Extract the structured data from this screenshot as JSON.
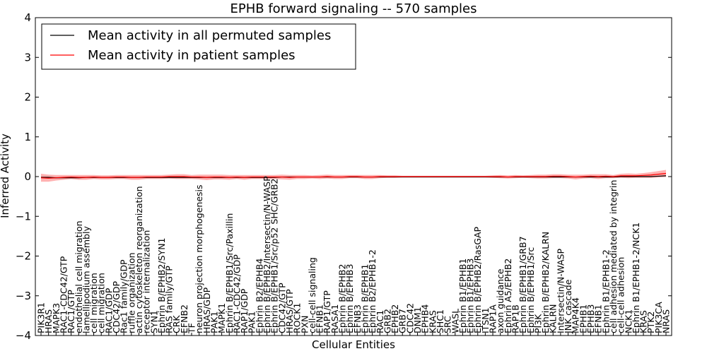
{
  "chart_data": {
    "type": "line",
    "title": "EPHB forward signaling -- 570 samples",
    "xlabel": "Cellular Entities",
    "ylabel": "Inferred Activity",
    "ylim": [
      -4,
      4
    ],
    "yticks": [
      -4,
      -3,
      -2,
      -1,
      0,
      1,
      2,
      3,
      4
    ],
    "ytick_labels": [
      "−4",
      "−3",
      "−2",
      "−1",
      "0",
      "1",
      "2",
      "3",
      "4"
    ],
    "grid": false,
    "legend_position": "top-left",
    "categories": [
      "PIK3R1",
      "HRAS",
      "MAPK3",
      "RAC1-CDC42/GTP",
      "RAC1/GTP",
      "endothelial cell migration",
      "lamellipodium assembly",
      "cell migration",
      "cell migration",
      "RAC1/GDP",
      "CDC42/GDP",
      "Rac1 family/GDP",
      "ruffle organization",
      "actin cytoskeleton reorganization",
      "receptor internalization",
      "SYN1",
      "Ephrin B/EPHB2/SYN1",
      "RAS family/GTP",
      "CRK",
      "EFNB2",
      "TF",
      "neuron projection morphogenesis",
      "HRAS/GDP",
      "PAK1",
      "MAPK1",
      "Ephrin B/EPHB1/Src/Paxillin",
      "RAC1-CDC42/GDP",
      "RAP1/GDP",
      "PAK1",
      "Ephrin B2/EPHB4",
      "Ephrin B/EPHB2/Intersectin/N-WASP",
      "Ephrin B/EPHB1/Src/p52 SHC/GRB2",
      "CDC42/GTP",
      "HRAS/GTP",
      "ROCK1",
      "PXN",
      "cell-cell signaling",
      "EFNB1",
      "RAP1/GTP",
      "RASA1",
      "Ephrin B/EPHB2",
      "Ephrin B/EPHB3",
      "EFNB3",
      "Ephrin B/EPHB1",
      "Ephrin B2/EPHB1-2",
      "RAC1",
      "GRB2",
      "EPHB2",
      "GRB7",
      "CDC42",
      "DNM1",
      "EPHB4",
      "KRAS",
      "SHC1",
      "SRC",
      "WASL",
      "Ephrin B1/EPHB1",
      "Ephrin B1/EPHB3",
      "Ephrin B/EPHB2/RasGAP",
      "ITSN1",
      "RAP1A",
      "axon guidance",
      "Ephrin A5/EPHB2",
      "RAP1B",
      "Ephrin B/EPHB1/GRB7",
      "Ephrin B/EPHB1/Src",
      "PI3K",
      "Ephrin B/EPHB2/KALRN",
      "KALRN",
      "Intersectin/N-WASP",
      "JNK cascade",
      "MAP4K4",
      "EPHB1",
      "EPHB3",
      "EFNB1",
      "Ephrin B1/EPHB1-2",
      "cell adhesion mediated by integrin",
      "cell-cell adhesion",
      "NCK1",
      "Ephrin B1/EPHB1-2/NCK1",
      "KRAS",
      "PTK2",
      "PIK3CA",
      "NRAS"
    ],
    "series": [
      {
        "name": "Mean activity in all permuted samples",
        "color": "#000000",
        "values": [
          -0.02,
          -0.02,
          -0.03,
          -0.03,
          -0.03,
          -0.03,
          -0.02,
          -0.02,
          -0.02,
          -0.02,
          -0.02,
          -0.02,
          -0.02,
          -0.02,
          -0.02,
          -0.02,
          -0.02,
          -0.02,
          -0.02,
          -0.02,
          -0.02,
          -0.02,
          -0.02,
          -0.02,
          -0.02,
          -0.02,
          -0.02,
          -0.02,
          -0.02,
          -0.02,
          -0.02,
          -0.02,
          -0.01,
          -0.01,
          -0.01,
          -0.01,
          -0.01,
          -0.01,
          -0.01,
          -0.01,
          -0.01,
          -0.01,
          -0.01,
          -0.01,
          -0.01,
          -0.01,
          -0.01,
          -0.01,
          -0.01,
          -0.01,
          -0.01,
          -0.01,
          -0.01,
          -0.01,
          -0.01,
          -0.01,
          -0.01,
          -0.01,
          -0.01,
          -0.01,
          -0.01,
          -0.01,
          -0.01,
          -0.01,
          -0.01,
          -0.01,
          -0.01,
          -0.01,
          -0.01,
          -0.01,
          -0.01,
          -0.01,
          -0.01,
          -0.01,
          -0.01,
          -0.01,
          -0.01,
          0.0,
          0.0,
          0.0,
          0.0,
          0.0,
          0.01,
          0.02
        ],
        "band": [
          0.03,
          0.03,
          0.03,
          0.03,
          0.03,
          0.03,
          0.03,
          0.03,
          0.03,
          0.03,
          0.03,
          0.03,
          0.03,
          0.03,
          0.03,
          0.03,
          0.03,
          0.03,
          0.03,
          0.03,
          0.03,
          0.03,
          0.03,
          0.03,
          0.03,
          0.03,
          0.03,
          0.03,
          0.03,
          0.03,
          0.03,
          0.03,
          0.02,
          0.02,
          0.02,
          0.02,
          0.02,
          0.02,
          0.02,
          0.02,
          0.02,
          0.02,
          0.02,
          0.02,
          0.02,
          0.02,
          0.02,
          0.02,
          0.02,
          0.02,
          0.02,
          0.02,
          0.02,
          0.02,
          0.02,
          0.02,
          0.02,
          0.02,
          0.02,
          0.02,
          0.02,
          0.02,
          0.02,
          0.02,
          0.02,
          0.02,
          0.02,
          0.02,
          0.02,
          0.02,
          0.02,
          0.02,
          0.02,
          0.02,
          0.02,
          0.02,
          0.02,
          0.02,
          0.02,
          0.02,
          0.02,
          0.02,
          0.02,
          0.03
        ]
      },
      {
        "name": "Mean activity in patient samples",
        "color": "#ff0000",
        "values": [
          -0.03,
          -0.04,
          -0.03,
          -0.02,
          -0.01,
          -0.02,
          -0.02,
          -0.01,
          -0.02,
          -0.02,
          -0.01,
          -0.01,
          -0.02,
          -0.02,
          -0.01,
          -0.01,
          -0.01,
          0.0,
          0.0,
          0.0,
          -0.01,
          -0.01,
          -0.02,
          -0.01,
          -0.01,
          -0.02,
          -0.01,
          -0.02,
          -0.01,
          -0.01,
          -0.01,
          -0.01,
          -0.01,
          -0.02,
          -0.01,
          -0.01,
          -0.01,
          -0.01,
          0.0,
          -0.01,
          -0.01,
          0.0,
          0.0,
          -0.01,
          -0.01,
          0.0,
          0.0,
          0.0,
          0.0,
          0.0,
          0.0,
          0.0,
          0.0,
          0.0,
          0.0,
          0.0,
          0.0,
          0.0,
          0.0,
          0.0,
          0.0,
          0.0,
          -0.01,
          0.0,
          0.0,
          0.0,
          0.0,
          0.0,
          0.01,
          0.01,
          0.0,
          -0.01,
          0.0,
          0.01,
          0.0,
          0.01,
          0.0,
          0.02,
          0.02,
          0.02,
          0.03,
          0.04,
          0.06,
          0.08
        ],
        "band": [
          0.1,
          0.09,
          0.07,
          0.06,
          0.05,
          0.06,
          0.06,
          0.05,
          0.05,
          0.05,
          0.05,
          0.05,
          0.06,
          0.06,
          0.05,
          0.05,
          0.05,
          0.05,
          0.06,
          0.06,
          0.05,
          0.06,
          0.07,
          0.06,
          0.06,
          0.06,
          0.05,
          0.06,
          0.05,
          0.05,
          0.05,
          0.05,
          0.06,
          0.06,
          0.05,
          0.05,
          0.04,
          0.05,
          0.05,
          0.05,
          0.05,
          0.04,
          0.04,
          0.05,
          0.05,
          0.04,
          0.03,
          0.03,
          0.02,
          0.02,
          0.02,
          0.02,
          0.02,
          0.02,
          0.02,
          0.02,
          0.02,
          0.02,
          0.02,
          0.02,
          0.03,
          0.04,
          0.04,
          0.04,
          0.03,
          0.04,
          0.05,
          0.05,
          0.05,
          0.05,
          0.05,
          0.06,
          0.05,
          0.05,
          0.06,
          0.05,
          0.04,
          0.05,
          0.06,
          0.05,
          0.06,
          0.07,
          0.08,
          0.09
        ]
      }
    ]
  }
}
